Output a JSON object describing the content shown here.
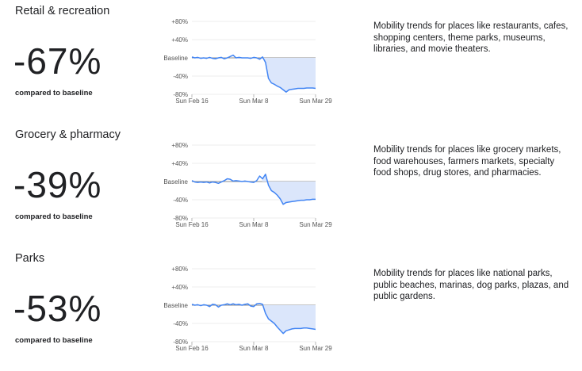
{
  "colors": {
    "line": "#4285f4",
    "fill": "#dbe6fb",
    "grid": "#dddddd",
    "baseline": "#666666"
  },
  "rows": [
    {
      "category": "Retail & recreation",
      "percent": "-67%",
      "compared": "compared to baseline",
      "description": "Mobility trends for places like restaurants, cafes, shopping centers, theme parks, museums, libraries, and movie theaters."
    },
    {
      "category": "Grocery & pharmacy",
      "percent": "-39%",
      "compared": "compared to baseline",
      "description": "Mobility trends for places like grocery markets, food warehouses, farmers markets, specialty food shops, drug stores, and pharmacies."
    },
    {
      "category": "Parks",
      "percent": "-53%",
      "compared": "compared to baseline",
      "description": "Mobility trends for places like national parks, public beaches, marinas, dog parks, plazas, and public gardens."
    }
  ],
  "chart_data": [
    {
      "type": "line",
      "y_tick_labels": [
        "+80%",
        "+40%",
        "Baseline",
        "-40%",
        "-80%"
      ],
      "y_ticks": [
        80,
        40,
        0,
        -40,
        -80
      ],
      "ylim": [
        -80,
        80
      ],
      "x_tick_labels": [
        "Sun Feb 16",
        "Sun Mar 8",
        "Sun Mar 29"
      ],
      "x_ticks": [
        "2020-02-16",
        "2020-03-08",
        "2020-03-29"
      ],
      "xlim": [
        "2020-02-16",
        "2020-03-29"
      ],
      "baseline_start": "2020-03-11",
      "series": [
        {
          "x": [
            "2020-02-16",
            "2020-02-17",
            "2020-02-18",
            "2020-02-19",
            "2020-02-20",
            "2020-02-21",
            "2020-02-22",
            "2020-02-23",
            "2020-02-24",
            "2020-02-25",
            "2020-02-26",
            "2020-02-27",
            "2020-02-28",
            "2020-02-29",
            "2020-03-01",
            "2020-03-02",
            "2020-03-03",
            "2020-03-04",
            "2020-03-05",
            "2020-03-06",
            "2020-03-07",
            "2020-03-08",
            "2020-03-09",
            "2020-03-10",
            "2020-03-11",
            "2020-03-12",
            "2020-03-13",
            "2020-03-14",
            "2020-03-15",
            "2020-03-16",
            "2020-03-17",
            "2020-03-18",
            "2020-03-19",
            "2020-03-20",
            "2020-03-21",
            "2020-03-22",
            "2020-03-23",
            "2020-03-24",
            "2020-03-25",
            "2020-03-26",
            "2020-03-27",
            "2020-03-28",
            "2020-03-29"
          ],
          "y": [
            2,
            0,
            1,
            -1,
            0,
            -1,
            1,
            -1,
            -2,
            0,
            1,
            -2,
            0,
            3,
            6,
            0,
            1,
            0,
            0,
            0,
            -1,
            1,
            0,
            -3,
            2,
            -10,
            -45,
            -55,
            -58,
            -62,
            -65,
            -70,
            -75,
            -70,
            -69,
            -68,
            -67,
            -67,
            -67,
            -66,
            -66,
            -66,
            -67
          ]
        }
      ]
    },
    {
      "type": "line",
      "y_tick_labels": [
        "+80%",
        "+40%",
        "Baseline",
        "-40%",
        "-80%"
      ],
      "y_ticks": [
        80,
        40,
        0,
        -40,
        -80
      ],
      "ylim": [
        -80,
        80
      ],
      "x_tick_labels": [
        "Sun Feb 16",
        "Sun Mar 8",
        "Sun Mar 29"
      ],
      "x_ticks": [
        "2020-02-16",
        "2020-03-08",
        "2020-03-29"
      ],
      "xlim": [
        "2020-02-16",
        "2020-03-29"
      ],
      "baseline_start": "2020-03-11",
      "series": [
        {
          "x": [
            "2020-02-16",
            "2020-02-17",
            "2020-02-18",
            "2020-02-19",
            "2020-02-20",
            "2020-02-21",
            "2020-02-22",
            "2020-02-23",
            "2020-02-24",
            "2020-02-25",
            "2020-02-26",
            "2020-02-27",
            "2020-02-28",
            "2020-02-29",
            "2020-03-01",
            "2020-03-02",
            "2020-03-03",
            "2020-03-04",
            "2020-03-05",
            "2020-03-06",
            "2020-03-07",
            "2020-03-08",
            "2020-03-09",
            "2020-03-10",
            "2020-03-11",
            "2020-03-12",
            "2020-03-13",
            "2020-03-14",
            "2020-03-15",
            "2020-03-16",
            "2020-03-17",
            "2020-03-18",
            "2020-03-19",
            "2020-03-20",
            "2020-03-21",
            "2020-03-22",
            "2020-03-23",
            "2020-03-24",
            "2020-03-25",
            "2020-03-26",
            "2020-03-27",
            "2020-03-28",
            "2020-03-29"
          ],
          "y": [
            2,
            -1,
            -2,
            -1,
            -2,
            -1,
            -3,
            -1,
            -2,
            -4,
            -1,
            2,
            6,
            5,
            1,
            2,
            1,
            0,
            1,
            0,
            -1,
            -2,
            2,
            12,
            6,
            16,
            -8,
            -20,
            -24,
            -30,
            -38,
            -50,
            -46,
            -45,
            -44,
            -43,
            -42,
            -41,
            -41,
            -40,
            -40,
            -39,
            -39
          ]
        }
      ]
    },
    {
      "type": "line",
      "y_tick_labels": [
        "+80%",
        "+40%",
        "Baseline",
        "-40%",
        "-80%"
      ],
      "y_ticks": [
        80,
        40,
        0,
        -40,
        -80
      ],
      "ylim": [
        -80,
        80
      ],
      "x_tick_labels": [
        "Sun Feb 16",
        "Sun Mar 8",
        "Sun Mar 29"
      ],
      "x_ticks": [
        "2020-02-16",
        "2020-03-08",
        "2020-03-29"
      ],
      "xlim": [
        "2020-02-16",
        "2020-03-29"
      ],
      "baseline_start": "2020-03-11",
      "series": [
        {
          "x": [
            "2020-02-16",
            "2020-02-17",
            "2020-02-18",
            "2020-02-19",
            "2020-02-20",
            "2020-02-21",
            "2020-02-22",
            "2020-02-23",
            "2020-02-24",
            "2020-02-25",
            "2020-02-26",
            "2020-02-27",
            "2020-02-28",
            "2020-02-29",
            "2020-03-01",
            "2020-03-02",
            "2020-03-03",
            "2020-03-04",
            "2020-03-05",
            "2020-03-06",
            "2020-03-07",
            "2020-03-08",
            "2020-03-09",
            "2020-03-10",
            "2020-03-11",
            "2020-03-12",
            "2020-03-13",
            "2020-03-14",
            "2020-03-15",
            "2020-03-16",
            "2020-03-17",
            "2020-03-18",
            "2020-03-19",
            "2020-03-20",
            "2020-03-21",
            "2020-03-22",
            "2020-03-23",
            "2020-03-24",
            "2020-03-25",
            "2020-03-26",
            "2020-03-27",
            "2020-03-28",
            "2020-03-29"
          ],
          "y": [
            2,
            0,
            1,
            -1,
            1,
            0,
            -3,
            2,
            1,
            -4,
            0,
            1,
            3,
            1,
            3,
            1,
            2,
            0,
            2,
            3,
            -2,
            -3,
            3,
            4,
            2,
            -18,
            -30,
            -35,
            -40,
            -48,
            -55,
            -62,
            -56,
            -54,
            -52,
            -51,
            -51,
            -51,
            -50,
            -50,
            -51,
            -52,
            -53
          ]
        }
      ]
    }
  ]
}
